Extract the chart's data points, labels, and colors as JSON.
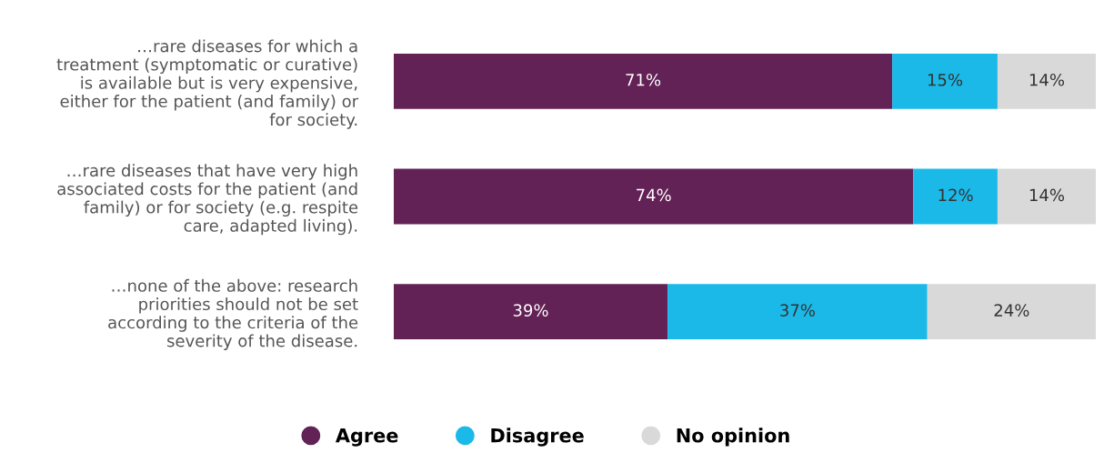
{
  "chart_data": {
    "type": "bar",
    "orientation": "horizontal",
    "stacked": true,
    "categories": [
      "…rare diseases for which a\ntreatment (symptomatic or curative)\nis available but is very expensive,\neither for the patient (and family) or\nfor society.",
      "…rare diseases that have very high\nassociated costs for the patient (and\nfamily) or for society (e.g. respite\ncare, adapted living).",
      "…none of the above: research\npriorities should not be set\naccording to the criteria of the\nseverity of the disease."
    ],
    "series": [
      {
        "name": "Agree",
        "color": "#632256",
        "values": [
          71,
          74,
          39
        ],
        "value_labels": [
          "71%",
          "74%",
          "39%"
        ]
      },
      {
        "name": "Disagree",
        "color": "#1bb9e8",
        "values": [
          15,
          12,
          37
        ],
        "value_labels": [
          "15%",
          "12%",
          "37%"
        ]
      },
      {
        "name": "No opinion",
        "color": "#d9d9d9",
        "values": [
          14,
          14,
          24
        ],
        "value_labels": [
          "14%",
          "14%",
          "24%"
        ]
      }
    ],
    "legend": "bottom",
    "grid": false,
    "marker": "circle"
  }
}
